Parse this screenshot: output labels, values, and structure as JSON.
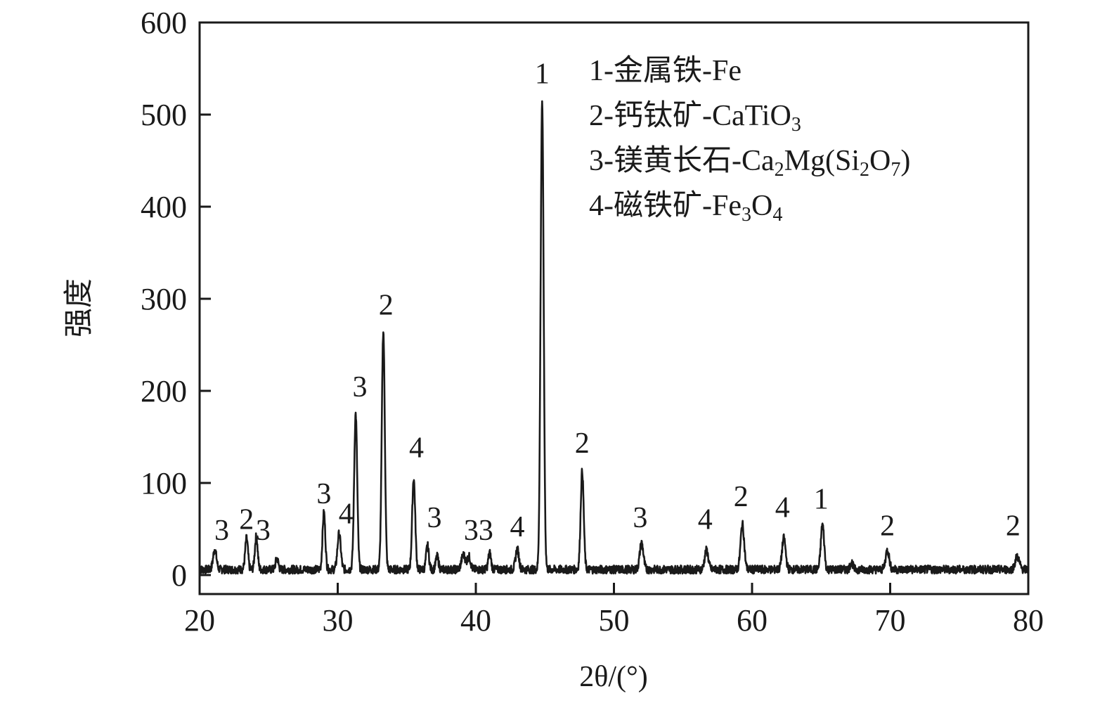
{
  "chart_data": {
    "type": "line",
    "title": "",
    "xlabel": "2θ/(°)",
    "ylabel": "强度",
    "xlim": [
      20,
      80
    ],
    "ylim": [
      0,
      600
    ],
    "xticks": [
      "20",
      "30",
      "40",
      "50",
      "60",
      "70",
      "80"
    ],
    "yticks": [
      "0",
      "100",
      "200",
      "300",
      "400",
      "500",
      "600"
    ],
    "grid": false,
    "legend_position": "top-right",
    "line_color": "#1a1a1a",
    "baseline": 6,
    "peaks": [
      {
        "x": 21.1,
        "y": 28,
        "w": 0.12
      },
      {
        "x": 23.4,
        "y": 40,
        "w": 0.1
      },
      {
        "x": 24.1,
        "y": 42,
        "w": 0.1
      },
      {
        "x": 25.6,
        "y": 18,
        "w": 0.1
      },
      {
        "x": 29.0,
        "y": 68,
        "w": 0.1
      },
      {
        "x": 30.1,
        "y": 45,
        "w": 0.12
      },
      {
        "x": 31.3,
        "y": 175,
        "w": 0.11
      },
      {
        "x": 33.3,
        "y": 265,
        "w": 0.11
      },
      {
        "x": 35.5,
        "y": 105,
        "w": 0.11
      },
      {
        "x": 36.5,
        "y": 32,
        "w": 0.1
      },
      {
        "x": 37.2,
        "y": 20,
        "w": 0.1
      },
      {
        "x": 39.1,
        "y": 22,
        "w": 0.14
      },
      {
        "x": 39.5,
        "y": 20,
        "w": 0.12
      },
      {
        "x": 41.0,
        "y": 24,
        "w": 0.1
      },
      {
        "x": 43.0,
        "y": 28,
        "w": 0.12
      },
      {
        "x": 44.8,
        "y": 515,
        "w": 0.11
      },
      {
        "x": 47.7,
        "y": 113,
        "w": 0.11
      },
      {
        "x": 52.0,
        "y": 35,
        "w": 0.13
      },
      {
        "x": 56.7,
        "y": 27,
        "w": 0.13
      },
      {
        "x": 59.3,
        "y": 55,
        "w": 0.13
      },
      {
        "x": 62.3,
        "y": 40,
        "w": 0.13
      },
      {
        "x": 65.1,
        "y": 55,
        "w": 0.12
      },
      {
        "x": 67.2,
        "y": 14,
        "w": 0.1
      },
      {
        "x": 69.8,
        "y": 27,
        "w": 0.13
      },
      {
        "x": 79.2,
        "y": 20,
        "w": 0.15
      }
    ],
    "peak_labels": [
      {
        "text": "3",
        "x": 21.6,
        "y": 38
      },
      {
        "text": "2",
        "x": 23.4,
        "y": 50
      },
      {
        "text": "3",
        "x": 24.6,
        "y": 38
      },
      {
        "text": "3",
        "x": 29.0,
        "y": 78
      },
      {
        "text": "4",
        "x": 30.6,
        "y": 56
      },
      {
        "text": "3",
        "x": 31.6,
        "y": 194
      },
      {
        "text": "2",
        "x": 33.5,
        "y": 283
      },
      {
        "text": "4",
        "x": 35.7,
        "y": 128
      },
      {
        "text": "3",
        "x": 37.0,
        "y": 52
      },
      {
        "text": "33",
        "x": 40.2,
        "y": 38
      },
      {
        "text": "4",
        "x": 43.0,
        "y": 42
      },
      {
        "text": "1",
        "x": 44.8,
        "y": 534
      },
      {
        "text": "2",
        "x": 47.7,
        "y": 133
      },
      {
        "text": "3",
        "x": 51.9,
        "y": 52
      },
      {
        "text": "4",
        "x": 56.6,
        "y": 50
      },
      {
        "text": "2",
        "x": 59.2,
        "y": 75
      },
      {
        "text": "4",
        "x": 62.2,
        "y": 63
      },
      {
        "text": "1",
        "x": 65.0,
        "y": 72
      },
      {
        "text": "2",
        "x": 69.8,
        "y": 43
      },
      {
        "text": "2",
        "x": 78.9,
        "y": 43
      }
    ],
    "legend": [
      {
        "prefix": "1-金属铁-Fe",
        "sub": []
      },
      {
        "prefix": "2-钙钛矿-CaTiO",
        "sub": [
          {
            "t": "3",
            "s": true
          }
        ]
      },
      {
        "prefix": "3-镁黄长石-Ca",
        "sub": [
          {
            "t": "2",
            "s": true
          },
          {
            "t": "Mg(Si",
            "s": false
          },
          {
            "t": "2",
            "s": true
          },
          {
            "t": "O",
            "s": false
          },
          {
            "t": "7",
            "s": true
          },
          {
            "t": ")",
            "s": false
          }
        ]
      },
      {
        "prefix": "4-磁铁矿-Fe",
        "sub": [
          {
            "t": "3",
            "s": true
          },
          {
            "t": "O",
            "s": false
          },
          {
            "t": "4",
            "s": true
          }
        ]
      }
    ]
  }
}
